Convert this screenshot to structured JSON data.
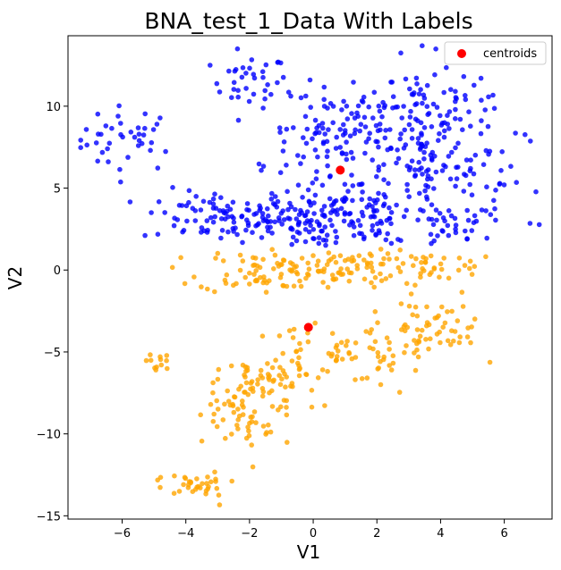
{
  "chart_data": {
    "type": "scatter",
    "title": "BNA_test_1_Data With Labels",
    "xlabel": "V1",
    "ylabel": "V2",
    "xlim": [
      -7.7,
      7.5
    ],
    "ylim": [
      -15.2,
      14.3
    ],
    "xticks": [
      -6,
      -4,
      -2,
      0,
      2,
      4,
      6
    ],
    "yticks": [
      -15,
      -10,
      -5,
      0,
      5,
      10
    ],
    "xtick_labels": [
      "−6",
      "−4",
      "−2",
      "0",
      "2",
      "4",
      "6"
    ],
    "ytick_labels": [
      "−15",
      "−10",
      "−5",
      "0",
      "5",
      "10"
    ],
    "grid": false,
    "legend": {
      "position": "top-right",
      "entries": [
        {
          "label": "centroids",
          "color": "#ff0000"
        }
      ]
    },
    "centroids": [
      {
        "x": 0.85,
        "y": 6.1
      },
      {
        "x": -0.15,
        "y": -3.5
      }
    ],
    "clusters": [
      {
        "color": "#0000ff",
        "regions": [
          {
            "cx": -5.8,
            "cy": 8.0,
            "sx": 0.8,
            "sy": 1.0,
            "n": 40
          },
          {
            "cx": -2.0,
            "cy": 11.5,
            "sx": 0.6,
            "sy": 0.8,
            "n": 35
          },
          {
            "cx": -3.0,
            "cy": 3.3,
            "sx": 1.2,
            "sy": 0.8,
            "n": 80
          },
          {
            "cx": -0.5,
            "cy": 3.0,
            "sx": 1.0,
            "sy": 0.8,
            "n": 70
          },
          {
            "cx": 1.0,
            "cy": 4.0,
            "sx": 1.0,
            "sy": 1.3,
            "n": 110
          },
          {
            "cx": 0.5,
            "cy": 8.5,
            "sx": 1.0,
            "sy": 1.3,
            "n": 80
          },
          {
            "cx": 3.5,
            "cy": 9.5,
            "sx": 1.2,
            "sy": 1.5,
            "n": 110
          },
          {
            "cx": 3.5,
            "cy": 6.5,
            "sx": 1.3,
            "sy": 1.2,
            "n": 80
          },
          {
            "cx": 3.5,
            "cy": 3.0,
            "sx": 1.3,
            "sy": 0.8,
            "n": 60
          },
          {
            "cx": 5.6,
            "cy": 5.0,
            "sx": 0.6,
            "sy": 1.2,
            "n": 12
          }
        ]
      },
      {
        "color": "#ffa500",
        "regions": [
          {
            "cx": -1.8,
            "cy": 0.0,
            "sx": 0.9,
            "sy": 0.7,
            "n": 60
          },
          {
            "cx": 0.8,
            "cy": 0.0,
            "sx": 1.0,
            "sy": 0.8,
            "n": 70
          },
          {
            "cx": 3.5,
            "cy": 0.3,
            "sx": 0.9,
            "sy": 0.5,
            "n": 40
          },
          {
            "cx": 3.5,
            "cy": -3.5,
            "sx": 0.9,
            "sy": 0.9,
            "n": 60
          },
          {
            "cx": 1.8,
            "cy": -5.2,
            "sx": 0.8,
            "sy": 0.9,
            "n": 40
          },
          {
            "cx": -1.5,
            "cy": -7.0,
            "sx": 0.9,
            "sy": 0.8,
            "n": 70
          },
          {
            "cx": -2.3,
            "cy": -9.5,
            "sx": 0.6,
            "sy": 1.2,
            "n": 45
          },
          {
            "cx": -3.8,
            "cy": -13.0,
            "sx": 0.5,
            "sy": 0.4,
            "n": 35
          },
          {
            "cx": -4.8,
            "cy": -5.5,
            "sx": 0.3,
            "sy": 0.3,
            "n": 12
          },
          {
            "cx": -0.3,
            "cy": -5.0,
            "sx": 0.6,
            "sy": 1.2,
            "n": 25
          }
        ]
      }
    ]
  }
}
